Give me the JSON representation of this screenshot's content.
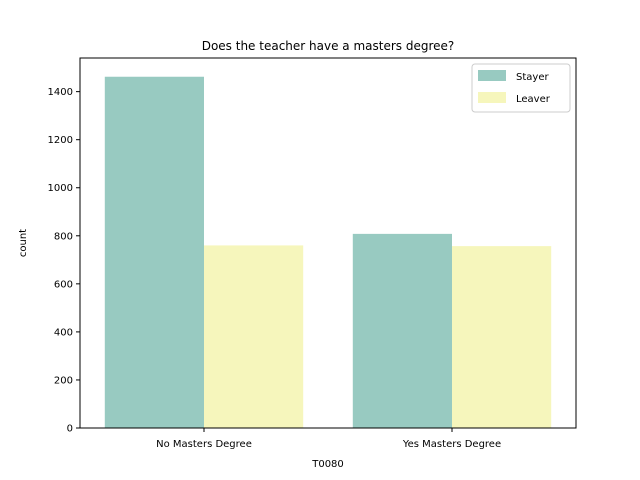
{
  "chart_data": {
    "type": "bar",
    "title": "Does the teacher have a masters degree?",
    "xlabel": "T0080",
    "ylabel": "count",
    "categories": [
      "No Masters Degree",
      "Yes Masters Degree"
    ],
    "series": [
      {
        "name": "Stayer",
        "color": "#98cac1",
        "values": [
          1462,
          808
        ]
      },
      {
        "name": "Leaver",
        "color": "#f6f6bc",
        "values": [
          760,
          757
        ]
      }
    ],
    "ylim": [
      0,
      1540
    ],
    "yticks": [
      0,
      200,
      400,
      600,
      800,
      1000,
      1200,
      1400
    ],
    "grid": false,
    "legend_position": "top-right"
  }
}
